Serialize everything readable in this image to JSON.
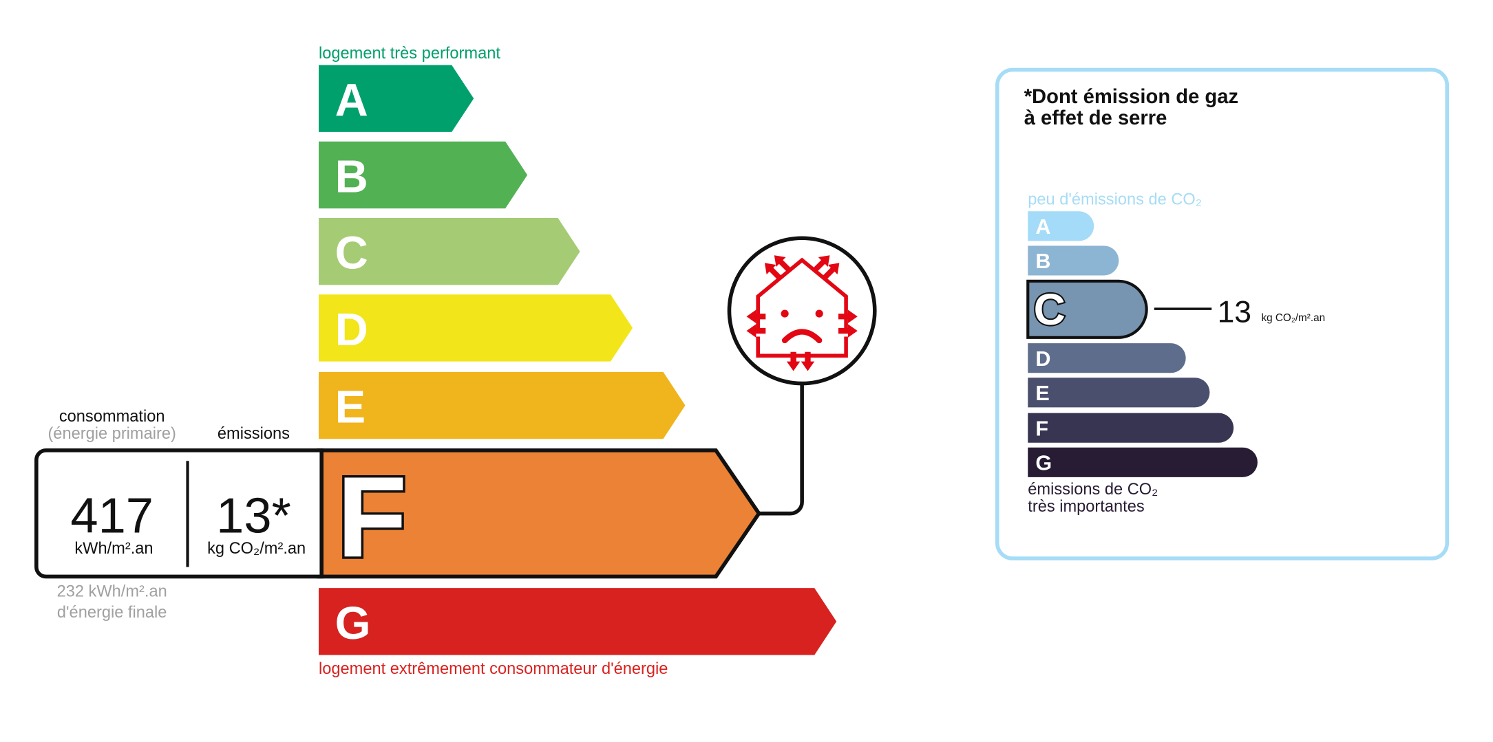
{
  "energy": {
    "top_label": "logement très performant",
    "bottom_label": "logement extrêmement consommateur d'énergie",
    "current_class": "F",
    "classes": [
      {
        "letter": "A",
        "color": "#00a06d"
      },
      {
        "letter": "B",
        "color": "#52b153"
      },
      {
        "letter": "C",
        "color": "#a5cc74"
      },
      {
        "letter": "D",
        "color": "#f2e51a"
      },
      {
        "letter": "E",
        "color": "#f0b41c"
      },
      {
        "letter": "F",
        "color": "#eb8235"
      },
      {
        "letter": "G",
        "color": "#d7221f"
      }
    ],
    "consumption_label": "consommation",
    "consumption_sublabel": "(énergie primaire)",
    "emissions_label": "émissions",
    "consumption_value": "417",
    "consumption_unit": "kWh/m².an",
    "emissions_value": "13*",
    "emissions_unit": "kg CO₂/m².an",
    "final_energy_value": "232 kWh/m².an",
    "final_energy_label": "d'énergie finale",
    "icon": "house-heat-loss-sad-icon"
  },
  "ges": {
    "title_line1": "*Dont émission de gaz",
    "title_line2": "à effet de serre",
    "top_label": "peu d'émissions de CO₂",
    "bottom_label_line1": "émissions de CO₂",
    "bottom_label_line2": "très importantes",
    "current_class": "C",
    "value": "13",
    "unit": "kg CO₂/m².an",
    "border_color": "#a6dcf6",
    "classes": [
      {
        "letter": "A",
        "color": "#a4dbf8"
      },
      {
        "letter": "B",
        "color": "#8cb4d3"
      },
      {
        "letter": "C",
        "color": "#7794b1"
      },
      {
        "letter": "D",
        "color": "#5f6d8d"
      },
      {
        "letter": "E",
        "color": "#4b4f6e"
      },
      {
        "letter": "F",
        "color": "#373551"
      },
      {
        "letter": "G",
        "color": "#281b34"
      }
    ]
  }
}
